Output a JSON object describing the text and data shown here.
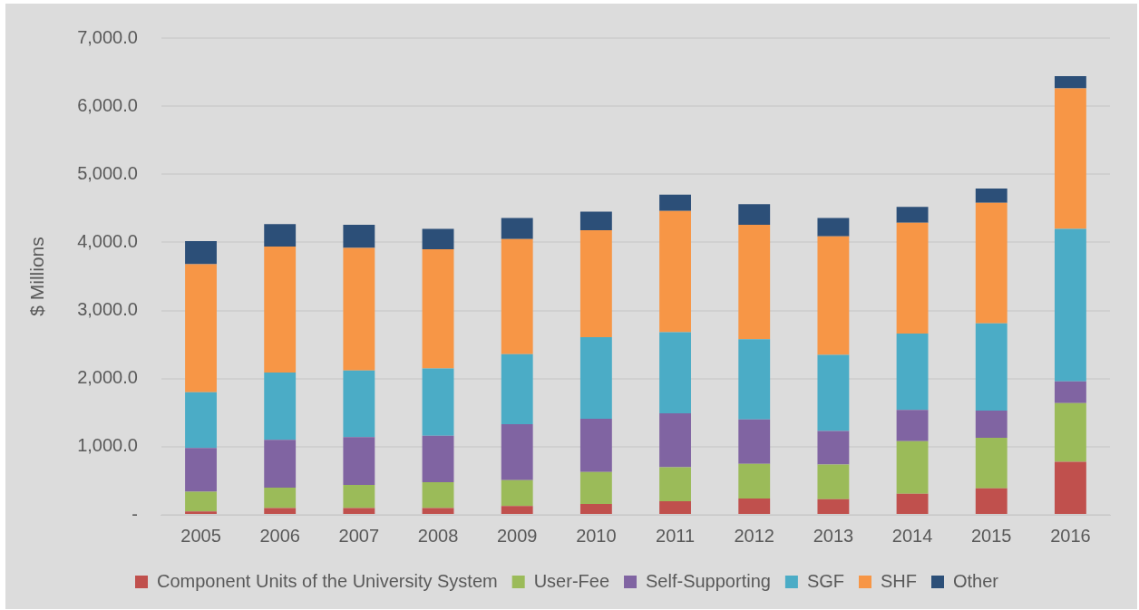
{
  "chart_data": {
    "type": "bar",
    "stacked": true,
    "ylabel": "$ Millions",
    "categories": [
      "2005",
      "2006",
      "2007",
      "2008",
      "2009",
      "2010",
      "2011",
      "2012",
      "2013",
      "2014",
      "2015",
      "2016"
    ],
    "series": [
      {
        "name": "Component Units of the University System",
        "color": "#c0504d",
        "values": [
          50,
          100,
          100,
          100,
          130,
          160,
          200,
          240,
          230,
          310,
          390,
          780
        ]
      },
      {
        "name": "User-Fee",
        "color": "#9bbb59",
        "values": [
          290,
          300,
          340,
          380,
          380,
          470,
          500,
          510,
          510,
          770,
          740,
          860
        ]
      },
      {
        "name": "Self-Supporting",
        "color": "#8064a2",
        "values": [
          640,
          700,
          700,
          680,
          820,
          780,
          790,
          650,
          490,
          460,
          400,
          320
        ]
      },
      {
        "name": "SGF",
        "color": "#4bacc6",
        "values": [
          820,
          990,
          980,
          990,
          1030,
          1200,
          1190,
          1180,
          1120,
          1120,
          1280,
          2240
        ]
      },
      {
        "name": "SHF",
        "color": "#f79646",
        "values": [
          1880,
          1850,
          1800,
          1750,
          1690,
          1570,
          1780,
          1680,
          1740,
          1630,
          1770,
          2060
        ]
      },
      {
        "name": "Other",
        "color": "#2c4f78",
        "values": [
          340,
          330,
          340,
          300,
          310,
          270,
          240,
          300,
          270,
          230,
          210,
          180
        ]
      }
    ],
    "ylim": [
      0,
      7000
    ],
    "yticks": [
      {
        "value": 0,
        "label": "-"
      },
      {
        "value": 1000,
        "label": "1,000.0"
      },
      {
        "value": 2000,
        "label": "2,000.0"
      },
      {
        "value": 3000,
        "label": "3,000.0"
      },
      {
        "value": 4000,
        "label": "4,000.0"
      },
      {
        "value": 5000,
        "label": "5,000.0"
      },
      {
        "value": 6000,
        "label": "6,000.0"
      },
      {
        "value": 7000,
        "label": "7,000.0"
      }
    ],
    "grid": "y",
    "legend": "bottom"
  }
}
